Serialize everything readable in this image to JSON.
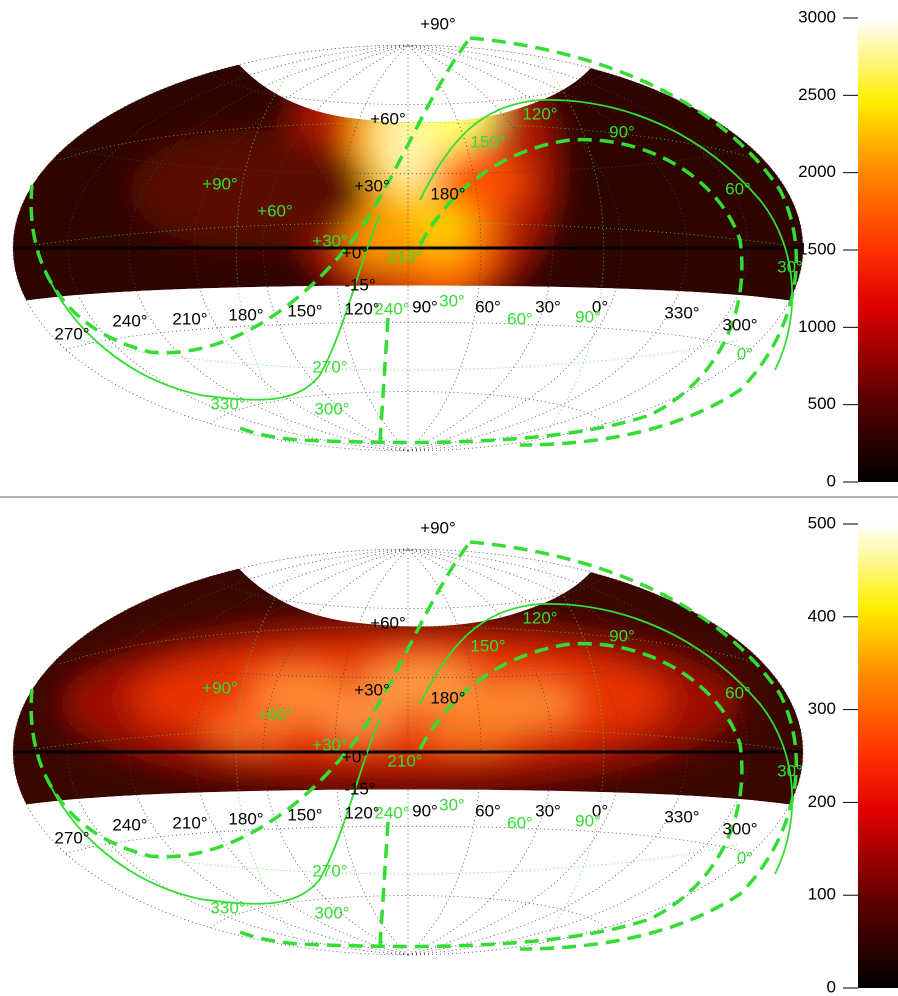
{
  "panels": [
    {
      "colorbar": {
        "ylim": [
          0,
          3000
        ],
        "yticks": [
          0,
          500,
          1000,
          1500,
          2000,
          2500,
          3000
        ]
      }
    },
    {
      "colorbar": {
        "ylim": [
          0,
          500
        ],
        "yticks": [
          0,
          100,
          200,
          300,
          400,
          500
        ]
      }
    }
  ],
  "black_labels": [
    "+90°",
    "+60°",
    "+30°",
    "180°",
    "+0°",
    "-15°",
    "270°",
    "240°",
    "210°",
    "180°",
    "150°",
    "120°",
    "90°",
    "60°",
    "30°",
    "0°",
    "330°",
    "300°"
  ],
  "green_labels": [
    "+90°",
    "+60°",
    "+30°",
    "210°",
    "240°",
    "30°",
    "60°",
    "90°",
    "150°",
    "120°",
    "90°",
    "60°",
    "30°",
    "0°",
    "270°",
    "300°",
    "330°"
  ]
}
